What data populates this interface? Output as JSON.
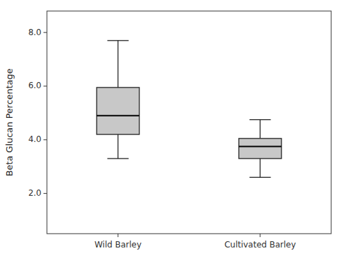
{
  "chart_data": {
    "type": "box",
    "y_label": "Beta Glucan Percentage",
    "categories": [
      "Wild Barley",
      "Cultivated Barley"
    ],
    "values": [
      {
        "whisker_low": 3.3,
        "q1": 4.2,
        "median": 4.9,
        "q3": 5.95,
        "whisker_high": 7.7
      },
      {
        "whisker_low": 2.6,
        "q1": 3.3,
        "median": 3.75,
        "q3": 4.05,
        "whisker_high": 4.75
      }
    ],
    "color": "#c8c8c8",
    "ylim": [
      0.5,
      8.8
    ],
    "yticks": [
      {
        "value": 2.0,
        "label": "2.0"
      },
      {
        "value": 4.0,
        "label": "4.0"
      },
      {
        "value": 6.0,
        "label": "6.0"
      },
      {
        "value": 8.0,
        "label": "8.0"
      }
    ],
    "grid": false
  }
}
